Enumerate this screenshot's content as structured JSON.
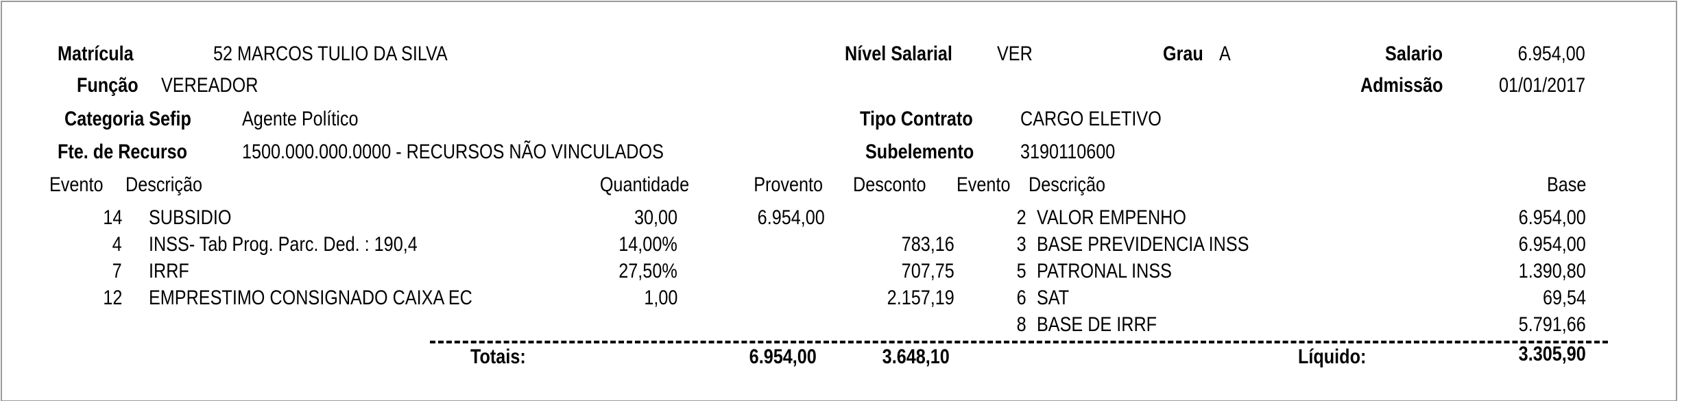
{
  "header": {
    "matricula_label": "Matrícula",
    "matricula_value": "52 MARCOS TULIO DA SILVA",
    "funcao_label": "Função",
    "funcao_value": "VEREADOR",
    "categoria_label": "Categoria Sefip",
    "categoria_value": "Agente Político",
    "fonte_label": "Fte. de Recurso",
    "fonte_value": "1500.000.000.0000 - RECURSOS NÃO VINCULADOS",
    "nivel_label": "Nível Salarial",
    "nivel_value": "VER",
    "grau_label": "Grau",
    "grau_value": "A",
    "salario_label": "Salario",
    "salario_value": "6.954,00",
    "admissao_label": "Admissão",
    "admissao_value": "01/01/2017",
    "tipo_label": "Tipo Contrato",
    "tipo_value": "CARGO ELETIVO",
    "sub_label": "Subelemento",
    "sub_value": "3190110600"
  },
  "columns": {
    "evento": "Evento",
    "descricao": "Descrição",
    "quantidade": "Quantidade",
    "provento": "Provento",
    "desconto": "Desconto",
    "evento2": "Evento",
    "descricao2": "Descrição",
    "base": "Base"
  },
  "events": [
    {
      "code": "14",
      "desc": "SUBSIDIO",
      "qty": "30,00",
      "provento": "6.954,00",
      "desconto": ""
    },
    {
      "code": "4",
      "desc": "INSS- Tab Prog. Parc. Ded. : 190,4",
      "qty": "14,00%",
      "provento": "",
      "desconto": "783,16"
    },
    {
      "code": "7",
      "desc": "IRRF",
      "qty": "27,50%",
      "provento": "",
      "desconto": "707,75"
    },
    {
      "code": "12",
      "desc": "EMPRESTIMO CONSIGNADO CAIXA EC",
      "qty": "1,00",
      "provento": "",
      "desconto": "2.157,19"
    }
  ],
  "bases": [
    {
      "code": "2",
      "desc": "VALOR EMPENHO",
      "base": "6.954,00"
    },
    {
      "code": "3",
      "desc": "BASE PREVIDENCIA INSS",
      "base": "6.954,00"
    },
    {
      "code": "5",
      "desc": "PATRONAL INSS",
      "base": "1.390,80"
    },
    {
      "code": "6",
      "desc": "SAT",
      "base": "69,54"
    },
    {
      "code": "8",
      "desc": "BASE DE IRRF",
      "base": "5.791,66"
    }
  ],
  "totals": {
    "label": "Totais:",
    "provento": "6.954,00",
    "desconto": "3.648,10",
    "liquido_label": "Líquido:",
    "liquido": "3.305,90"
  }
}
